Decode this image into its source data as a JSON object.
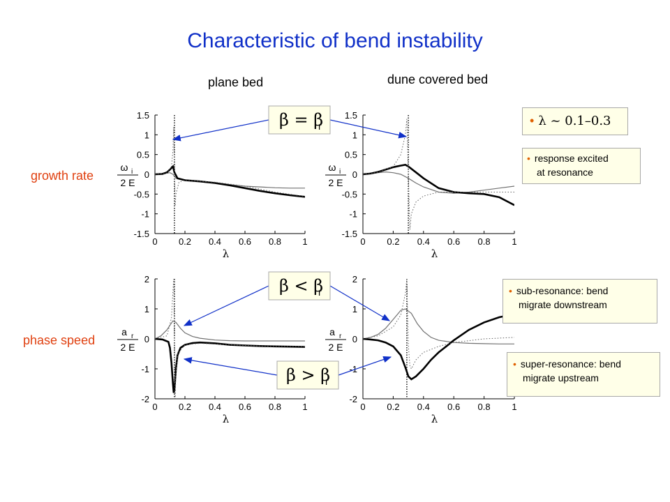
{
  "title": "Characteristic of bend instability",
  "columns": {
    "left": "plane bed",
    "right": "dune covered bed"
  },
  "rows": {
    "top": "growth rate",
    "bottom": "phase speed"
  },
  "labels": {
    "beta_eq": "β = β",
    "beta_lt": "β < β",
    "beta_gt": "β > β",
    "beta_sub": "r"
  },
  "notes": {
    "lambda_range": "λ ~ 0.1–0.3",
    "response": [
      "response excited",
      "at resonance"
    ],
    "sub": [
      "sub-resonance: bend",
      "migrate downstream"
    ],
    "super": [
      "super-resonance: bend",
      "migrate upstream"
    ]
  },
  "axis_text": {
    "xlabel": "λ",
    "growth_ylabel_num": "ω",
    "growth_ylabel_sub": "i",
    "phase_ylabel_num": "a",
    "phase_ylabel_sub": "r",
    "ylabel_den": "2 E"
  },
  "colors": {
    "title": "#1030c8",
    "row_label": "#e04010",
    "arrow": "#1030c8",
    "bullet": "#e06000"
  },
  "chart_data": [
    {
      "type": "line",
      "panel": "growth-plane",
      "xlim": [
        0,
        1
      ],
      "ylim": [
        -1.5,
        1.5
      ],
      "xticks": [
        "0",
        "0.2",
        "0.4",
        "0.6",
        "0.8",
        "1"
      ],
      "yticks": [
        "-1.5",
        "-1",
        "-0.5",
        "0",
        "0.5",
        "1",
        "1.5"
      ],
      "resonance_x": 0.13,
      "series": [
        {
          "style": "thin",
          "x": [
            0,
            0.05,
            0.1,
            0.12,
            0.14,
            0.2,
            0.3,
            0.4,
            0.5,
            0.6,
            0.7,
            0.8,
            0.9,
            1.0
          ],
          "y": [
            0,
            0.01,
            0.04,
            0.0,
            -0.1,
            -0.14,
            -0.18,
            -0.21,
            -0.26,
            -0.3,
            -0.32,
            -0.34,
            -0.35,
            -0.35
          ]
        },
        {
          "style": "thick",
          "x": [
            0,
            0.05,
            0.08,
            0.1,
            0.12,
            0.13,
            0.15,
            0.2,
            0.3,
            0.4,
            0.5,
            0.6,
            0.7,
            0.8,
            0.9,
            1.0
          ],
          "y": [
            0,
            0.01,
            0.05,
            0.12,
            0.2,
            0.05,
            -0.1,
            -0.15,
            -0.18,
            -0.22,
            -0.28,
            -0.35,
            -0.42,
            -0.48,
            -0.53,
            -0.57
          ]
        },
        {
          "style": "dotted",
          "x": [
            0,
            0.08,
            0.11,
            0.12,
            0.125,
            0.135,
            0.14,
            0.16,
            0.2,
            0.4,
            0.6,
            0.8,
            1.0
          ],
          "y": [
            0,
            0.03,
            0.2,
            0.6,
            1.2,
            -0.8,
            -0.5,
            -0.2,
            -0.15,
            -0.2,
            -0.3,
            -0.45,
            -0.56
          ]
        }
      ]
    },
    {
      "type": "line",
      "panel": "growth-dune",
      "xlim": [
        0,
        1
      ],
      "ylim": [
        -1.5,
        1.5
      ],
      "xticks": [
        "0",
        "0.2",
        "0.4",
        "0.6",
        "0.8",
        "1"
      ],
      "yticks": [
        "-1.5",
        "-1",
        "-0.5",
        "0",
        "0.5",
        "1",
        "1.5"
      ],
      "resonance_x": 0.3,
      "series": [
        {
          "style": "thin",
          "x": [
            0,
            0.05,
            0.1,
            0.15,
            0.2,
            0.25,
            0.3,
            0.35,
            0.4,
            0.5,
            0.6,
            0.7,
            0.8,
            0.9,
            1.0
          ],
          "y": [
            0,
            0.01,
            0.04,
            0.06,
            0.04,
            0.0,
            -0.1,
            -0.22,
            -0.32,
            -0.45,
            -0.48,
            -0.45,
            -0.4,
            -0.35,
            -0.3
          ]
        },
        {
          "style": "thick",
          "x": [
            0,
            0.05,
            0.1,
            0.15,
            0.2,
            0.25,
            0.28,
            0.3,
            0.35,
            0.4,
            0.5,
            0.6,
            0.7,
            0.8,
            0.9,
            1.0
          ],
          "y": [
            0,
            0.02,
            0.06,
            0.12,
            0.18,
            0.22,
            0.24,
            0.2,
            0.05,
            -0.1,
            -0.35,
            -0.45,
            -0.48,
            -0.5,
            -0.58,
            -0.78
          ]
        },
        {
          "style": "dotted",
          "x": [
            0,
            0.1,
            0.2,
            0.25,
            0.28,
            0.29,
            0.31,
            0.32,
            0.35,
            0.4,
            0.5,
            0.6,
            0.8,
            1.0
          ],
          "y": [
            0,
            0.05,
            0.2,
            0.5,
            1.0,
            1.4,
            -1.4,
            -1.0,
            -0.7,
            -0.55,
            -0.45,
            -0.45,
            -0.45,
            -0.45
          ]
        }
      ]
    },
    {
      "type": "line",
      "panel": "phase-plane",
      "xlim": [
        0,
        1
      ],
      "ylim": [
        -2,
        2
      ],
      "xticks": [
        "0",
        "0.2",
        "0.4",
        "0.6",
        "0.8",
        "1"
      ],
      "yticks": [
        "-2",
        "-1",
        "0",
        "1",
        "2"
      ],
      "resonance_x": 0.13,
      "series": [
        {
          "style": "thin",
          "x": [
            0,
            0.04,
            0.08,
            0.1,
            0.12,
            0.14,
            0.17,
            0.2,
            0.25,
            0.3,
            0.4,
            0.5,
            0.6,
            0.7,
            0.8,
            0.9,
            1.0
          ],
          "y": [
            0,
            0.1,
            0.3,
            0.45,
            0.6,
            0.55,
            0.35,
            0.2,
            0.08,
            0.02,
            -0.04,
            -0.06,
            -0.07,
            -0.07,
            -0.07,
            -0.07,
            -0.07
          ]
        },
        {
          "style": "thick",
          "x": [
            0,
            0.05,
            0.09,
            0.1,
            0.11,
            0.12,
            0.125,
            0.13,
            0.14,
            0.15,
            0.17,
            0.2,
            0.25,
            0.3,
            0.4,
            0.5,
            0.6,
            0.7,
            0.8,
            0.9,
            1.0
          ],
          "y": [
            0,
            -0.02,
            -0.1,
            -0.3,
            -0.8,
            -1.5,
            -1.8,
            -1.7,
            -1.0,
            -0.55,
            -0.3,
            -0.2,
            -0.14,
            -0.12,
            -0.15,
            -0.2,
            -0.22,
            -0.24,
            -0.25,
            -0.26,
            -0.27
          ]
        },
        {
          "style": "dotted",
          "x": [
            0,
            0.08,
            0.11,
            0.12,
            0.125,
            0.135,
            0.14,
            0.15,
            0.2,
            0.3,
            0.5,
            0.7,
            1.0
          ],
          "y": [
            0,
            0.1,
            0.7,
            1.6,
            2.0,
            -2.0,
            -1.2,
            -0.5,
            -0.2,
            -0.15,
            -0.2,
            -0.24,
            -0.26
          ]
        }
      ]
    },
    {
      "type": "line",
      "panel": "phase-dune",
      "xlim": [
        0,
        1
      ],
      "ylim": [
        -2,
        2
      ],
      "xticks": [
        "0",
        "0.2",
        "0.4",
        "0.6",
        "0.8",
        "1"
      ],
      "yticks": [
        "-2",
        "-1",
        "0",
        "1",
        "2"
      ],
      "resonance_x": 0.29,
      "series": [
        {
          "style": "thin",
          "x": [
            0,
            0.05,
            0.1,
            0.15,
            0.2,
            0.25,
            0.28,
            0.32,
            0.36,
            0.4,
            0.45,
            0.5,
            0.6,
            0.7,
            0.8,
            0.9,
            1.0
          ],
          "y": [
            0,
            0.05,
            0.15,
            0.35,
            0.65,
            0.95,
            1.0,
            0.85,
            0.5,
            0.25,
            0.05,
            -0.05,
            -0.12,
            -0.15,
            -0.16,
            -0.17,
            -0.17
          ]
        },
        {
          "style": "thick",
          "x": [
            0,
            0.05,
            0.1,
            0.15,
            0.2,
            0.25,
            0.28,
            0.3,
            0.32,
            0.35,
            0.4,
            0.45,
            0.5,
            0.55,
            0.6,
            0.7,
            0.8,
            0.9,
            1.0
          ],
          "y": [
            0,
            -0.02,
            -0.05,
            -0.12,
            -0.25,
            -0.55,
            -0.95,
            -1.25,
            -1.35,
            -1.25,
            -1.0,
            -0.7,
            -0.45,
            -0.25,
            -0.05,
            0.3,
            0.55,
            0.72,
            0.82
          ]
        },
        {
          "style": "dotted",
          "x": [
            0,
            0.1,
            0.2,
            0.25,
            0.28,
            0.29,
            0.3,
            0.31,
            0.32,
            0.35,
            0.4,
            0.5,
            0.6,
            0.8,
            1.0
          ],
          "y": [
            0,
            0.1,
            0.4,
            0.8,
            1.5,
            2.0,
            -0.2,
            -0.9,
            -1.0,
            -0.7,
            -0.45,
            -0.25,
            -0.12,
            0.0,
            0.05
          ]
        }
      ]
    }
  ]
}
